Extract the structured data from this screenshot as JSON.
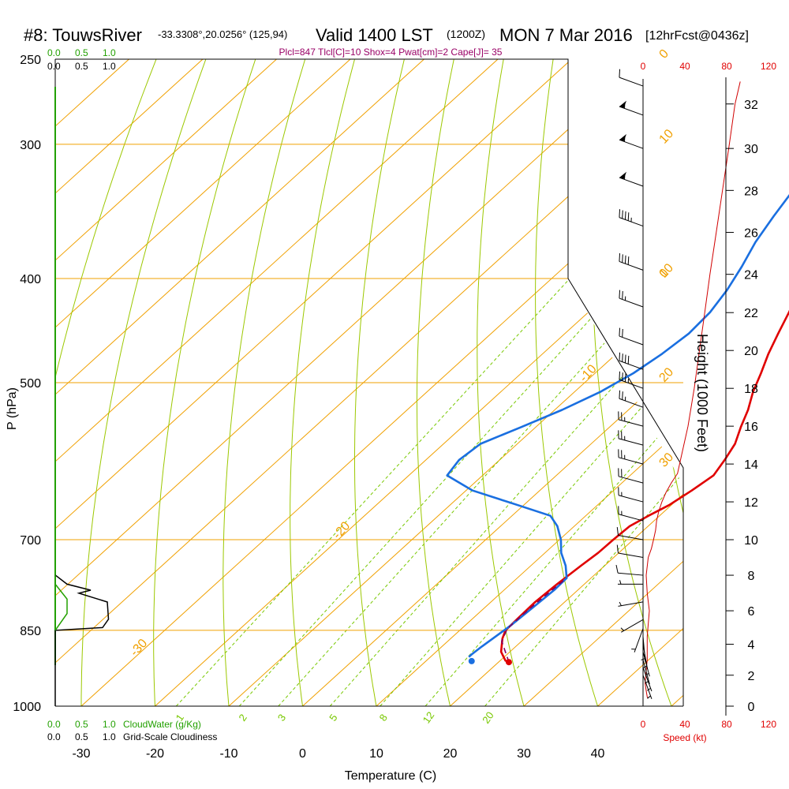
{
  "chart_data": {
    "type": "line",
    "title": {
      "id": "#8: TouwsRiver",
      "coords": "-33.3308°,20.0256° (125,94)",
      "valid": "Valid 1400 LST",
      "zulu": "(1200Z)",
      "date": "MON 7 Mar 2016",
      "fcst": "[12hrFcst@0436z]"
    },
    "subtitle": "Plcl=847 Tlcl[C]=10 Shox=4 Pwat[cm]=2 Cape[J]= 35",
    "xlabel": "Temperature (C)",
    "ylabel": "P (hPa)",
    "y2label": "Height (1000 Feet)",
    "xlim": [
      -34,
      46
    ],
    "ylim": [
      1000,
      250
    ],
    "x_ticks": [
      -30,
      -20,
      -10,
      0,
      10,
      20,
      30,
      40
    ],
    "p_ticks": [
      250,
      300,
      400,
      500,
      700,
      850,
      1000
    ],
    "height_ticks": [
      0,
      2,
      4,
      6,
      8,
      10,
      12,
      14,
      16,
      18,
      20,
      22,
      24,
      26,
      28,
      30,
      32
    ],
    "speed_ticks": [
      0,
      40,
      80,
      120
    ],
    "speed_label": "Speed (kt)",
    "cloud_ticks": [
      "0.0",
      "0.5",
      "1.0"
    ],
    "cloud_water_label": "CloudWater (g/Kg)",
    "cloudiness_label": "Grid-Scale Cloudiness",
    "mixing_ratio_labels": [
      "1",
      "2",
      "3",
      "5",
      "8",
      "12",
      "20"
    ],
    "mixing_ratio_values": [
      1,
      2,
      3,
      5,
      8,
      12,
      20
    ],
    "isotherm_labels": [
      {
        "text": "10",
        "t": 10,
        "p": 300
      },
      {
        "text": "0",
        "t": 0,
        "p": 400
      },
      {
        "text": "-10",
        "t": -10,
        "p": 500
      },
      {
        "text": "-20",
        "t": -20,
        "p": 700
      },
      {
        "text": "-30",
        "t": -30,
        "p": 900
      },
      {
        "text": "0",
        "t": 0,
        "p": 250
      },
      {
        "text": "10",
        "t": 10,
        "p": 400
      },
      {
        "text": "20",
        "t": 20,
        "p": 500
      },
      {
        "text": "30",
        "t": 30,
        "p": 600
      }
    ],
    "series": [
      {
        "name": "Temperature",
        "color": "#e00000",
        "points": [
          [
            21.4,
            910
          ],
          [
            20.7,
            907
          ],
          [
            18.8,
            890
          ],
          [
            17,
            865
          ],
          [
            16.2,
            850
          ],
          [
            16.1,
            830
          ],
          [
            16,
            800
          ],
          [
            16.3,
            770
          ],
          [
            16.8,
            740
          ],
          [
            17.2,
            720
          ],
          [
            17.3,
            700
          ],
          [
            17.5,
            680
          ],
          [
            18.5,
            665
          ],
          [
            19.7,
            650
          ],
          [
            20.6,
            630
          ],
          [
            21.3,
            610
          ],
          [
            20.5,
            590
          ],
          [
            19.5,
            570
          ],
          [
            17.8,
            550
          ],
          [
            16.2,
            530
          ],
          [
            14.2,
            510
          ],
          [
            12.5,
            490
          ],
          [
            10.6,
            470
          ],
          [
            8.9,
            450
          ],
          [
            7.2,
            430
          ],
          [
            5.3,
            410
          ],
          [
            3.3,
            390
          ],
          [
            1.5,
            370
          ],
          [
            -0.8,
            350
          ],
          [
            -3.2,
            330
          ],
          [
            -5.3,
            310
          ],
          [
            -7.6,
            290
          ],
          [
            -10,
            270
          ]
        ]
      },
      {
        "name": "Dewpoint",
        "color": "#1a6fe0",
        "points": [
          [
            15.2,
            900
          ],
          [
            15.2,
            895
          ],
          [
            15.4,
            880
          ],
          [
            15.8,
            860
          ],
          [
            16.2,
            840
          ],
          [
            16.5,
            810
          ],
          [
            16.8,
            780
          ],
          [
            16.7,
            760
          ],
          [
            14.7,
            740
          ],
          [
            12.2,
            720
          ],
          [
            10.2,
            700
          ],
          [
            7.7,
            680
          ],
          [
            5.2,
            665
          ],
          [
            -0.8,
            650
          ],
          [
            -9.1,
            630
          ],
          [
            -14.8,
            610
          ],
          [
            -15.5,
            590
          ],
          [
            -15,
            570
          ],
          [
            -12,
            550
          ],
          [
            -9,
            530
          ],
          [
            -6.5,
            510
          ],
          [
            -4.8,
            490
          ],
          [
            -3.8,
            470
          ],
          [
            -3.2,
            450
          ],
          [
            -3.5,
            430
          ],
          [
            -4.5,
            410
          ],
          [
            -6,
            390
          ],
          [
            -7.8,
            370
          ],
          [
            -9.2,
            350
          ],
          [
            -10.5,
            330
          ],
          [
            -11,
            310
          ],
          [
            -10.7,
            290
          ],
          [
            -10.4,
            270
          ]
        ]
      },
      {
        "name": "Parcel",
        "color": "#800060",
        "points": [
          [
            21.4,
            910
          ],
          [
            17.3,
            870
          ],
          [
            16.2,
            847
          ],
          [
            16.2,
            820
          ],
          [
            16.4,
            790
          ],
          [
            16.7,
            760
          ]
        ]
      }
    ],
    "surface_markers": [
      {
        "name": "temperature",
        "t": 21.4,
        "p": 910,
        "color": "#e00000"
      },
      {
        "name": "dewpoint",
        "t": 16.2,
        "p": 908,
        "color": "#1a6fe0"
      }
    ],
    "height_at_pressure": [
      [
        1000,
        0
      ],
      [
        850,
        4.9
      ],
      [
        700,
        10
      ],
      [
        500,
        18.3
      ],
      [
        400,
        23.8
      ],
      [
        300,
        30.2
      ],
      [
        250,
        34
      ]
    ],
    "wind_speed_profile": [
      [
        0.5,
        5
      ],
      [
        0.6,
        4
      ],
      [
        1,
        3
      ],
      [
        1.5,
        2
      ],
      [
        2.3,
        3
      ],
      [
        3,
        4
      ],
      [
        4.5,
        4
      ],
      [
        6,
        6
      ],
      [
        7,
        4
      ],
      [
        8,
        3
      ],
      [
        9,
        5
      ],
      [
        9.5,
        8
      ],
      [
        10,
        10
      ],
      [
        10.5,
        12
      ],
      [
        11,
        13
      ],
      [
        11.5,
        15
      ],
      [
        12,
        18
      ],
      [
        12.5,
        22
      ],
      [
        13,
        27
      ],
      [
        13.5,
        33
      ],
      [
        14.5,
        37
      ],
      [
        16,
        43
      ],
      [
        18,
        49
      ],
      [
        20,
        54
      ],
      [
        22,
        59
      ],
      [
        24,
        64
      ],
      [
        26,
        70
      ],
      [
        28,
        76
      ],
      [
        30,
        82
      ],
      [
        32,
        88
      ],
      [
        33,
        93
      ]
    ],
    "wind_barbs": [
      {
        "h": 32.8,
        "dir": 290,
        "spd": 10
      },
      {
        "h": 31.5,
        "dir": 290,
        "spd": 55
      },
      {
        "h": 30.0,
        "dir": 290,
        "spd": 55
      },
      {
        "h": 28.2,
        "dir": 290,
        "spd": 55
      },
      {
        "h": 26.3,
        "dir": 290,
        "spd": 45
      },
      {
        "h": 24.2,
        "dir": 290,
        "spd": 40
      },
      {
        "h": 22.3,
        "dir": 290,
        "spd": 25
      },
      {
        "h": 20.3,
        "dir": 290,
        "spd": 20
      },
      {
        "h": 19.0,
        "dir": 290,
        "spd": 40
      },
      {
        "h": 18.0,
        "dir": 290,
        "spd": 35
      },
      {
        "h": 17.0,
        "dir": 290,
        "spd": 25
      },
      {
        "h": 16.0,
        "dir": 285,
        "spd": 25
      },
      {
        "h": 15.0,
        "dir": 285,
        "spd": 25
      },
      {
        "h": 14.0,
        "dir": 285,
        "spd": 25
      },
      {
        "h": 13.0,
        "dir": 285,
        "spd": 20
      },
      {
        "h": 12.0,
        "dir": 285,
        "spd": 15
      },
      {
        "h": 11.0,
        "dir": 285,
        "spd": 15
      },
      {
        "h": 10.0,
        "dir": 280,
        "spd": 10
      },
      {
        "h": 9.0,
        "dir": 280,
        "spd": 10
      },
      {
        "h": 8.0,
        "dir": 275,
        "spd": 10
      },
      {
        "h": 7.5,
        "dir": 270,
        "spd": 5
      },
      {
        "h": 6.5,
        "dir": 260,
        "spd": 5
      },
      {
        "h": 5.5,
        "dir": 240,
        "spd": 5
      },
      {
        "h": 5.0,
        "dir": 200,
        "spd": 5
      },
      {
        "h": 4.5,
        "dir": 175,
        "spd": 5
      },
      {
        "h": 4.0,
        "dir": 170,
        "spd": 5
      },
      {
        "h": 3.5,
        "dir": 165,
        "spd": 5
      },
      {
        "h": 3.0,
        "dir": 165,
        "spd": 5
      },
      {
        "h": 2.5,
        "dir": 160,
        "spd": 5
      },
      {
        "h": 2.0,
        "dir": 160,
        "spd": 5
      }
    ],
    "cloud_profile": [
      [
        1000,
        0
      ],
      [
        850,
        0
      ],
      [
        845,
        0.4
      ],
      [
        830,
        0.45
      ],
      [
        800,
        0.44
      ],
      [
        785,
        0.2
      ],
      [
        780,
        0.3
      ],
      [
        770,
        0.1
      ],
      [
        755,
        0
      ]
    ],
    "cloud_water_profile": [
      [
        850,
        0
      ],
      [
        820,
        0.1
      ],
      [
        795,
        0.1
      ],
      [
        770,
        0
      ],
      [
        755,
        0
      ]
    ],
    "grid": true,
    "colors": {
      "isotherm": "#f0a000",
      "mixing_ratio": "#78c800",
      "pressure_line": "#f0a000",
      "axis_cloud": "#22a000",
      "wind_speed": "#d00000",
      "label_red": "#e00000",
      "subtitle": "#990066"
    }
  }
}
